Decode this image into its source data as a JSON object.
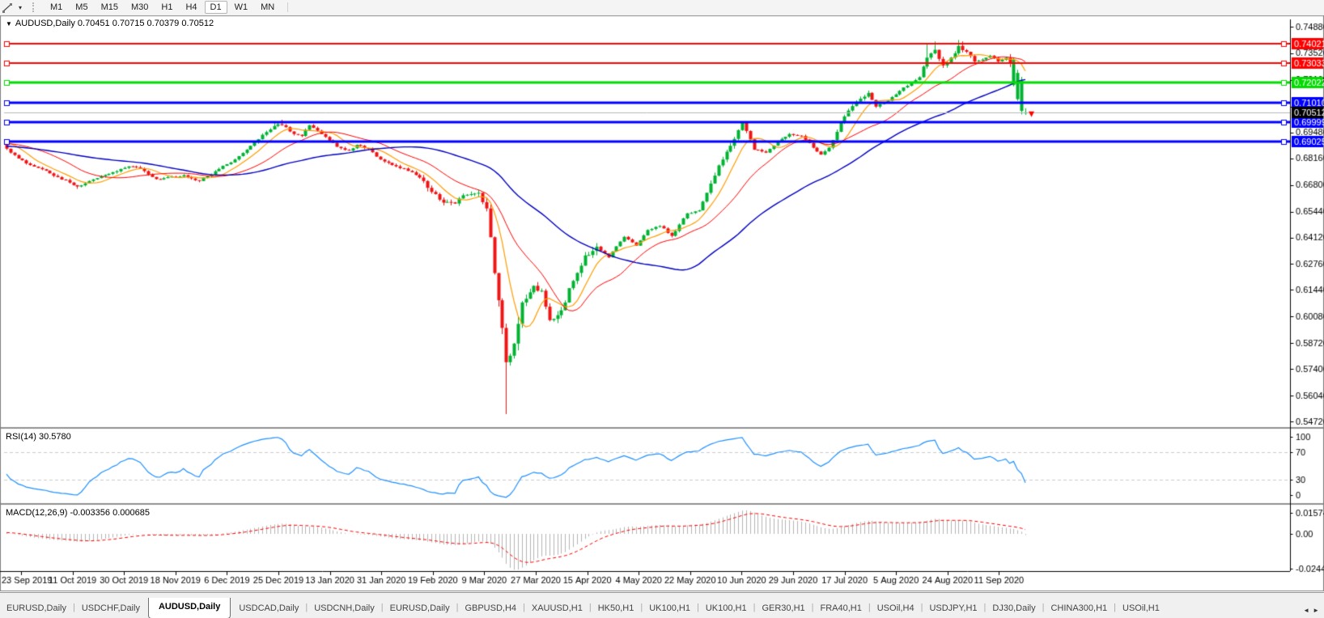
{
  "toolbar": {
    "timeframes": [
      "M1",
      "M5",
      "M15",
      "M30",
      "H1",
      "H4",
      "D1",
      "W1",
      "MN"
    ],
    "active_timeframe": "D1",
    "caret_glyph": "▾"
  },
  "chart": {
    "symbol_period": "AUDUSD,Daily",
    "context_caret": "▼"
  },
  "indicators": {
    "rsi": {
      "label": "RSI(14) 30.5780",
      "scale_labels": [
        [
          "100",
          522
        ],
        [
          "70",
          541
        ],
        [
          "30",
          575
        ],
        [
          "0",
          594
        ]
      ],
      "levels": [
        70,
        30
      ],
      "line_color": "#1E90FF",
      "level_color": "#CCCCCC"
    },
    "macd": {
      "label": "MACD(12,26,9) -0.003356 0.000685",
      "scale_labels": [
        [
          "0.015741",
          616
        ],
        [
          "0.00",
          642
        ],
        [
          "-0.02441",
          685
        ]
      ],
      "hist_color": "#B4B4B4",
      "signal_color": "#FF0000"
    }
  },
  "price_axis": {
    "ticks": [
      "0.74880",
      "0.73520",
      "0.72160",
      "0.70800",
      "0.69480",
      "0.68160",
      "0.66800",
      "0.65440",
      "0.64120",
      "0.62760",
      "0.61440",
      "0.60080",
      "0.58720",
      "0.57400",
      "0.56040",
      "0.54720"
    ],
    "current_badge": {
      "value": "0.70512",
      "bg": "#000000",
      "text": "#FFFFFF"
    }
  },
  "time_axis": {
    "labels": [
      "23 Sep 2019",
      "11 Oct 2019",
      "30 Oct 2019",
      "18 Nov 2019",
      "6 Dec 2019",
      "25 Dec 2019",
      "13 Jan 2020",
      "31 Jan 2020",
      "19 Feb 2020",
      "9 Mar 2020",
      "27 Mar 2020",
      "15 Apr 2020",
      "4 May 2020",
      "22 May 2020",
      "10 Jun 2020",
      "29 Jun 2020",
      "17 Jul 2020",
      "5 Aug 2020",
      "24 Aug 2020",
      "11 Sep 2020"
    ]
  },
  "tabs": {
    "items": [
      "EURUSD,Daily",
      "USDCHF,Daily",
      "AUDUSD,Daily",
      "USDCAD,Daily",
      "USDCNH,Daily",
      "EURUSD,Daily",
      "GBPUSD,H4",
      "XAUUSD,H1",
      "HK50,H1",
      "UK100,H1",
      "UK100,H1",
      "GER30,H1",
      "FRA40,H1",
      "USOil,H4",
      "USDJPY,H1",
      "DJ30,Daily",
      "CHINA300,H1",
      "USOil,H1"
    ],
    "active_index": 2,
    "scroll_left_glyph": "◄",
    "scroll_right_glyph": "►"
  },
  "chart_data": {
    "type": "candlestick",
    "symbol": "AUDUSD",
    "period": "Daily",
    "candle_count": 260,
    "ohlc_current": {
      "open": 0.70451,
      "high": 0.70715,
      "low": 0.70379,
      "close": 0.70512
    },
    "close_path": [
      [
        0,
        0.6865
      ],
      [
        3,
        0.6815
      ],
      [
        5,
        0.679
      ],
      [
        9,
        0.676
      ],
      [
        13,
        0.672
      ],
      [
        18,
        0.6672
      ],
      [
        23,
        0.6715
      ],
      [
        27,
        0.6745
      ],
      [
        31,
        0.6775
      ],
      [
        34,
        0.6765
      ],
      [
        38,
        0.671
      ],
      [
        42,
        0.6722
      ],
      [
        45,
        0.673
      ],
      [
        49,
        0.67
      ],
      [
        53,
        0.675
      ],
      [
        58,
        0.681
      ],
      [
        62,
        0.688
      ],
      [
        66,
        0.695
      ],
      [
        69,
        0.699
      ],
      [
        71,
        0.6975
      ],
      [
        73,
        0.694
      ],
      [
        75,
        0.693
      ],
      [
        77,
        0.6985
      ],
      [
        80,
        0.694
      ],
      [
        84,
        0.6875
      ],
      [
        87,
        0.6855
      ],
      [
        89,
        0.6885
      ],
      [
        92,
        0.6865
      ],
      [
        95,
        0.681
      ],
      [
        99,
        0.6775
      ],
      [
        103,
        0.6745
      ],
      [
        106,
        0.67
      ],
      [
        110,
        0.6605
      ],
      [
        114,
        0.6585
      ],
      [
        117,
        0.663
      ],
      [
        120,
        0.664
      ],
      [
        122,
        0.656
      ],
      [
        124,
        0.623
      ],
      [
        126,
        0.595
      ],
      [
        127,
        0.5775
      ],
      [
        129,
        0.587
      ],
      [
        131,
        0.608
      ],
      [
        134,
        0.6165
      ],
      [
        136,
        0.614
      ],
      [
        138,
        0.599
      ],
      [
        141,
        0.604
      ],
      [
        144,
        0.619
      ],
      [
        147,
        0.632
      ],
      [
        150,
        0.6365
      ],
      [
        153,
        0.631
      ],
      [
        157,
        0.6415
      ],
      [
        160,
        0.637
      ],
      [
        163,
        0.645
      ],
      [
        166,
        0.647
      ],
      [
        169,
        0.642
      ],
      [
        173,
        0.6535
      ],
      [
        176,
        0.655
      ],
      [
        178,
        0.664
      ],
      [
        181,
        0.678
      ],
      [
        184,
        0.688
      ],
      [
        187,
        0.7
      ],
      [
        190,
        0.686
      ],
      [
        193,
        0.6845
      ],
      [
        196,
        0.6905
      ],
      [
        199,
        0.694
      ],
      [
        202,
        0.693
      ],
      [
        205,
        0.687
      ],
      [
        207,
        0.6835
      ],
      [
        209,
        0.687
      ],
      [
        212,
        0.7
      ],
      [
        214,
        0.706
      ],
      [
        216,
        0.7105
      ],
      [
        219,
        0.715
      ],
      [
        221,
        0.708
      ],
      [
        224,
        0.711
      ],
      [
        227,
        0.716
      ],
      [
        230,
        0.72
      ],
      [
        232,
        0.723
      ],
      [
        234,
        0.733
      ],
      [
        236,
        0.737
      ],
      [
        238,
        0.729
      ],
      [
        240,
        0.733
      ],
      [
        242,
        0.739
      ],
      [
        244,
        0.736
      ],
      [
        246,
        0.731
      ],
      [
        248,
        0.732
      ],
      [
        250,
        0.734
      ],
      [
        252,
        0.731
      ],
      [
        254,
        0.733
      ],
      [
        255,
        0.73
      ],
      [
        259,
        0.70512
      ]
    ],
    "volatility": {
      "base": 0.0016,
      "zones": [
        [
          106,
          121,
          0.0042
        ],
        [
          122,
          131,
          0.0075
        ],
        [
          132,
          150,
          0.0045
        ],
        [
          178,
          190,
          0.0032
        ],
        [
          210,
          220,
          0.0026
        ],
        [
          232,
          246,
          0.0026
        ]
      ]
    },
    "candle_overrides": {
      "255": [
        0.733,
        0.7348,
        0.7282,
        0.7302
      ],
      "256": [
        0.719,
        0.7332,
        0.7183,
        0.7318
      ],
      "257": [
        0.7118,
        0.7268,
        0.711,
        0.7252
      ],
      "258": [
        0.7058,
        0.7232,
        0.704,
        0.7212
      ],
      "259": [
        0.70451,
        0.70715,
        0.70379,
        0.70512
      ]
    },
    "wick_overrides": {
      "18": [
        null,
        0.666
      ],
      "68": [
        0.7005,
        null
      ],
      "70": [
        0.7013,
        null
      ],
      "127": [
        null,
        0.551
      ],
      "234": [
        0.7405,
        null
      ],
      "236": [
        0.7413,
        null
      ],
      "242": [
        0.742,
        null
      ],
      "243": [
        0.7413,
        null
      ]
    },
    "moving_averages": [
      {
        "period": 8,
        "color": "#FF9C00",
        "width": 1.2
      },
      {
        "period": 20,
        "color": "#FF0000",
        "width": 1.0
      },
      {
        "period": 50,
        "color": "#0000C0",
        "width": 1.4
      }
    ],
    "hlines": [
      {
        "price": 0.74021,
        "color": "#FF0000",
        "width": 2
      },
      {
        "price": 0.73033,
        "color": "#FF0000",
        "width": 2
      },
      {
        "price": 0.72022,
        "color": "#00DC00",
        "width": 3
      },
      {
        "price": 0.7101,
        "color": "#0000FF",
        "width": 3
      },
      {
        "price": 0.69999,
        "color": "#0000FF",
        "width": 3
      },
      {
        "price": 0.69025,
        "color": "#0000FF",
        "width": 3
      }
    ],
    "current_price_line": {
      "price": 0.70512,
      "color": "#B8B8B8"
    },
    "last_price_marker": {
      "color": "#FF0000"
    },
    "colors": {
      "bull": "#00B432",
      "bear": "#F01414",
      "background": "#FFFFFF",
      "axis_text": "#000000"
    }
  }
}
